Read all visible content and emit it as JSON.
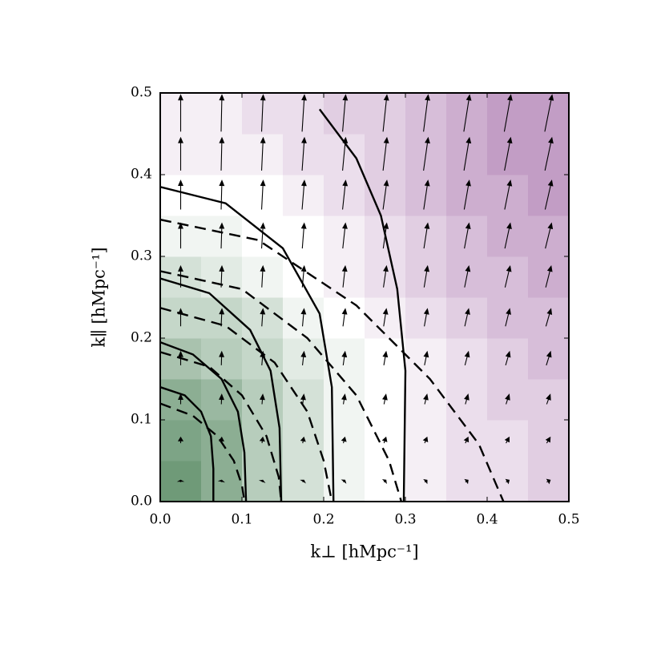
{
  "chart_data": {
    "type": "heatmap",
    "xlabel": "k⊥ [hMpc⁻¹]",
    "ylabel": "k∥ [hMpc⁻¹]",
    "xlim": [
      0,
      0.5
    ],
    "ylim": [
      0,
      0.5
    ],
    "xticks": [
      {
        "value": 0,
        "label": "0.0"
      },
      0.1,
      0.2,
      0.3,
      0.4,
      0.5
    ],
    "yticks": [
      {
        "value": 0,
        "label": "0.0"
      },
      0.1,
      0.2,
      0.3,
      0.4,
      0.5
    ],
    "colormap": {
      "low": "#6f9a78",
      "mid": "#ffffff",
      "high": "#9a5c9f"
    },
    "zlim": [
      -1,
      1
    ],
    "x_edges": [
      0,
      0.05,
      0.1,
      0.15,
      0.2,
      0.25,
      0.3,
      0.35,
      0.4,
      0.45,
      0.5
    ],
    "y_edges": [
      0,
      0.05,
      0.1,
      0.15,
      0.2,
      0.25,
      0.3,
      0.35,
      0.4,
      0.45,
      0.5
    ],
    "z": [
      [
        -1,
        -0.8,
        -0.5,
        -0.3,
        -0.1,
        0,
        0.1,
        0.2,
        0.2,
        0.3
      ],
      [
        -0.9,
        -0.8,
        -0.5,
        -0.3,
        -0.1,
        0,
        0.1,
        0.2,
        0.2,
        0.3
      ],
      [
        -0.8,
        -0.7,
        -0.5,
        -0.3,
        -0.1,
        0,
        0.1,
        0.2,
        0.3,
        0.3
      ],
      [
        -0.6,
        -0.5,
        -0.4,
        -0.2,
        -0.1,
        0,
        0.1,
        0.2,
        0.3,
        0.4
      ],
      [
        -0.4,
        -0.4,
        -0.3,
        -0.1,
        0,
        0.1,
        0.2,
        0.3,
        0.4,
        0.4
      ],
      [
        -0.3,
        -0.2,
        -0.1,
        0,
        0.1,
        0.2,
        0.3,
        0.4,
        0.4,
        0.5
      ],
      [
        -0.1,
        -0.1,
        0,
        0,
        0.1,
        0.2,
        0.3,
        0.4,
        0.5,
        0.5
      ],
      [
        0,
        0,
        0,
        0.1,
        0.2,
        0.3,
        0.4,
        0.5,
        0.5,
        0.6
      ],
      [
        0.1,
        0.1,
        0.1,
        0.2,
        0.2,
        0.3,
        0.4,
        0.5,
        0.6,
        0.6
      ],
      [
        0.1,
        0.1,
        0.2,
        0.2,
        0.3,
        0.3,
        0.4,
        0.5,
        0.6,
        0.6
      ]
    ],
    "quiver": {
      "color": "#000000",
      "u": [
        [
          0,
          0.01,
          0.02,
          0.03,
          0.04,
          0.05,
          0.06,
          0.07,
          0.08,
          0.09
        ],
        [
          0,
          0.01,
          0.02,
          0.03,
          0.04,
          0.05,
          0.06,
          0.07,
          0.08,
          0.09
        ],
        [
          0,
          0.01,
          0.02,
          0.03,
          0.04,
          0.05,
          0.06,
          0.07,
          0.08,
          0.09
        ],
        [
          0,
          0.01,
          0.03,
          0.04,
          0.05,
          0.06,
          0.07,
          0.09,
          0.1,
          0.11
        ],
        [
          0,
          0.02,
          0.03,
          0.04,
          0.06,
          0.07,
          0.08,
          0.1,
          0.11,
          0.13
        ],
        [
          0,
          0.02,
          0.03,
          0.05,
          0.06,
          0.08,
          0.09,
          0.11,
          0.13,
          0.14
        ],
        [
          0,
          0.02,
          0.04,
          0.05,
          0.07,
          0.09,
          0.1,
          0.12,
          0.14,
          0.16
        ],
        [
          0,
          0.02,
          0.04,
          0.06,
          0.08,
          0.1,
          0.11,
          0.13,
          0.15,
          0.17
        ],
        [
          0,
          0.02,
          0.04,
          0.06,
          0.08,
          0.1,
          0.12,
          0.14,
          0.16,
          0.18
        ],
        [
          0,
          0.02,
          0.04,
          0.06,
          0.08,
          0.1,
          0.12,
          0.15,
          0.17,
          0.19
        ]
      ],
      "v": [
        [
          0.05,
          0.05,
          0.05,
          0.05,
          0.05,
          0.05,
          0.05,
          0.05,
          0.05,
          0.05
        ],
        [
          0.15,
          0.15,
          0.15,
          0.15,
          0.15,
          0.15,
          0.15,
          0.15,
          0.15,
          0.15
        ],
        [
          0.25,
          0.25,
          0.25,
          0.25,
          0.25,
          0.25,
          0.25,
          0.25,
          0.25,
          0.25
        ],
        [
          0.35,
          0.35,
          0.35,
          0.35,
          0.35,
          0.35,
          0.35,
          0.35,
          0.35,
          0.35
        ],
        [
          0.45,
          0.45,
          0.45,
          0.45,
          0.45,
          0.45,
          0.45,
          0.45,
          0.45,
          0.45
        ],
        [
          0.55,
          0.55,
          0.55,
          0.55,
          0.55,
          0.55,
          0.55,
          0.55,
          0.55,
          0.55
        ],
        [
          0.65,
          0.65,
          0.65,
          0.65,
          0.65,
          0.65,
          0.65,
          0.65,
          0.65,
          0.65
        ],
        [
          0.75,
          0.75,
          0.75,
          0.75,
          0.75,
          0.75,
          0.75,
          0.75,
          0.75,
          0.75
        ],
        [
          0.85,
          0.85,
          0.85,
          0.85,
          0.85,
          0.85,
          0.85,
          0.85,
          0.85,
          0.85
        ],
        [
          0.95,
          0.95,
          0.95,
          0.95,
          0.95,
          0.95,
          0.95,
          0.95,
          0.95,
          0.95
        ]
      ]
    },
    "contours": [
      {
        "style": "solid",
        "x": [
          0,
          0.03,
          0.05,
          0.062,
          0.065,
          0.065
        ],
        "y": [
          0.14,
          0.13,
          0.11,
          0.08,
          0.04,
          0
        ]
      },
      {
        "style": "solid",
        "x": [
          0,
          0.04,
          0.075,
          0.095,
          0.103,
          0.105
        ],
        "y": [
          0.195,
          0.18,
          0.15,
          0.11,
          0.06,
          0
        ]
      },
      {
        "style": "solid",
        "x": [
          0,
          0.06,
          0.11,
          0.135,
          0.146,
          0.148
        ],
        "y": [
          0.273,
          0.255,
          0.21,
          0.16,
          0.09,
          0
        ]
      },
      {
        "style": "solid",
        "x": [
          0,
          0.08,
          0.15,
          0.195,
          0.21,
          0.212
        ],
        "y": [
          0.385,
          0.365,
          0.31,
          0.23,
          0.14,
          0
        ]
      },
      {
        "style": "solid",
        "x": [
          0.195,
          0.24,
          0.27,
          0.29,
          0.3,
          0.298
        ],
        "y": [
          0.48,
          0.42,
          0.35,
          0.26,
          0.16,
          0
        ]
      },
      {
        "style": "dashed",
        "x": [
          0,
          0.04,
          0.07,
          0.09,
          0.1,
          0.103
        ],
        "y": [
          0.12,
          0.105,
          0.08,
          0.05,
          0.02,
          0
        ]
      },
      {
        "style": "dashed",
        "x": [
          0,
          0.06,
          0.1,
          0.13,
          0.145,
          0.148
        ],
        "y": [
          0.183,
          0.165,
          0.13,
          0.08,
          0.03,
          0
        ]
      },
      {
        "style": "dashed",
        "x": [
          0,
          0.08,
          0.14,
          0.18,
          0.2,
          0.21
        ],
        "y": [
          0.237,
          0.215,
          0.17,
          0.11,
          0.05,
          0
        ]
      },
      {
        "style": "dashed",
        "x": [
          0,
          0.1,
          0.18,
          0.24,
          0.28,
          0.295
        ],
        "y": [
          0.282,
          0.26,
          0.2,
          0.13,
          0.05,
          0
        ]
      },
      {
        "style": "dashed",
        "x": [
          0,
          0.12,
          0.24,
          0.33,
          0.39,
          0.42
        ],
        "y": [
          0.345,
          0.32,
          0.24,
          0.15,
          0.07,
          0
        ]
      }
    ]
  }
}
